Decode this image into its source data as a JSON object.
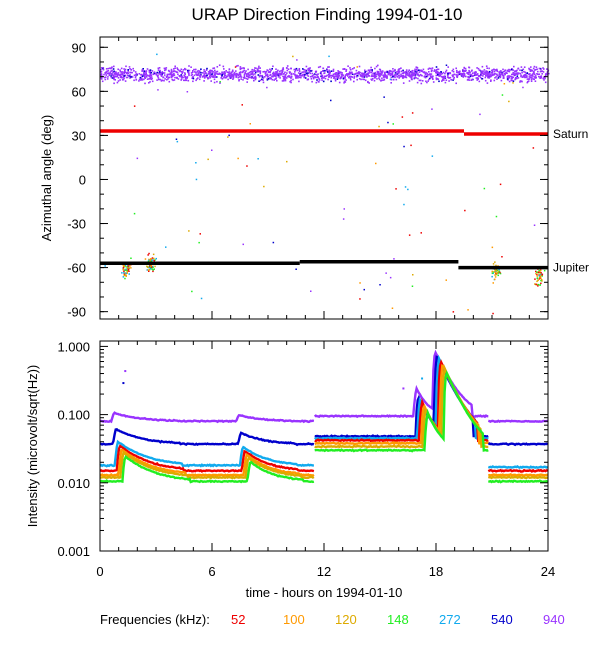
{
  "chart_data": {
    "type": "scatter",
    "title": "URAP Direction Finding  1994-01-10",
    "xlabel": "time - hours on 1994-01-10",
    "xlim": [
      0,
      24
    ],
    "xticks": [
      "0",
      "6",
      "12",
      "18",
      "24"
    ],
    "legend": {
      "label": "Frequencies (kHz):",
      "entries": [
        {
          "name": "52",
          "color": "#ee0000"
        },
        {
          "name": "100",
          "color": "#ff9900"
        },
        {
          "name": "120",
          "color": "#ddaa00"
        },
        {
          "name": "148",
          "color": "#22ee22"
        },
        {
          "name": "272",
          "color": "#11aaee"
        },
        {
          "name": "540",
          "color": "#0000cc"
        },
        {
          "name": "940",
          "color": "#9933ff"
        }
      ]
    },
    "panels": [
      {
        "name": "direction",
        "ylabel": "Azimuthal angle (deg)",
        "ylim": [
          -95,
          97
        ],
        "yscale": "linear",
        "yticks": [
          "90",
          "60",
          "30",
          "0",
          "-30",
          "-60",
          "-90"
        ],
        "references": [
          {
            "name": "Saturn",
            "color": "#ee0000",
            "segments": [
              [
                0,
                19.5,
                33
              ],
              [
                19.5,
                24,
                31
              ]
            ]
          },
          {
            "name": "Jupiter",
            "color": "#000000",
            "segments": [
              [
                0,
                10.7,
                -57
              ],
              [
                10.7,
                19.2,
                -56
              ],
              [
                19.2,
                24,
                -60
              ]
            ]
          }
        ],
        "scatter": {
          "series": "940",
          "center": 72,
          "spread": 7
        }
      },
      {
        "name": "intensity",
        "ylabel": "Intensity (microvolt/sqrt(Hz))",
        "ylim": [
          0.001,
          1.2
        ],
        "yscale": "log",
        "yticks": [
          "1.000",
          "0.100",
          "0.010",
          "0.001"
        ],
        "background_levels": [
          {
            "name": "940",
            "segments": [
              [
                0,
                11.5,
                0.08
              ],
              [
                11.5,
                20.8,
                0.095
              ],
              [
                20.8,
                24,
                0.08
              ]
            ]
          },
          {
            "name": "540",
            "segments": [
              [
                0,
                11.5,
                0.037
              ],
              [
                11.5,
                20.8,
                0.048
              ],
              [
                20.8,
                24,
                0.037
              ]
            ]
          },
          {
            "name": "272",
            "segments": [
              [
                0,
                11.5,
                0.018
              ],
              [
                11.5,
                20.8,
                0.045
              ],
              [
                20.8,
                24,
                0.017
              ]
            ]
          },
          {
            "name": "52",
            "segments": [
              [
                0,
                11.5,
                0.015
              ],
              [
                11.5,
                20.8,
                0.042
              ],
              [
                20.8,
                24,
                0.015
              ]
            ]
          },
          {
            "name": "100",
            "segments": [
              [
                0,
                11.5,
                0.013
              ],
              [
                11.5,
                20.8,
                0.038
              ],
              [
                20.8,
                24,
                0.013
              ]
            ]
          },
          {
            "name": "120",
            "segments": [
              [
                0,
                11.5,
                0.012
              ],
              [
                11.5,
                20.8,
                0.034
              ],
              [
                20.8,
                24,
                0.012
              ]
            ]
          },
          {
            "name": "148",
            "segments": [
              [
                0,
                11.5,
                0.0105
              ],
              [
                11.5,
                20.8,
                0.03
              ],
              [
                20.8,
                24,
                0.0105
              ]
            ]
          }
        ],
        "bursts": [
          {
            "time": 0.6,
            "peak": 0.03,
            "decay": 1.2
          },
          {
            "time": 7.3,
            "peak": 0.022,
            "decay": 1.0
          },
          {
            "time": 16.8,
            "peak": 0.2,
            "decay": 0.5
          },
          {
            "time": 17.8,
            "peak": 0.9,
            "decay": 0.7
          }
        ]
      }
    ]
  }
}
